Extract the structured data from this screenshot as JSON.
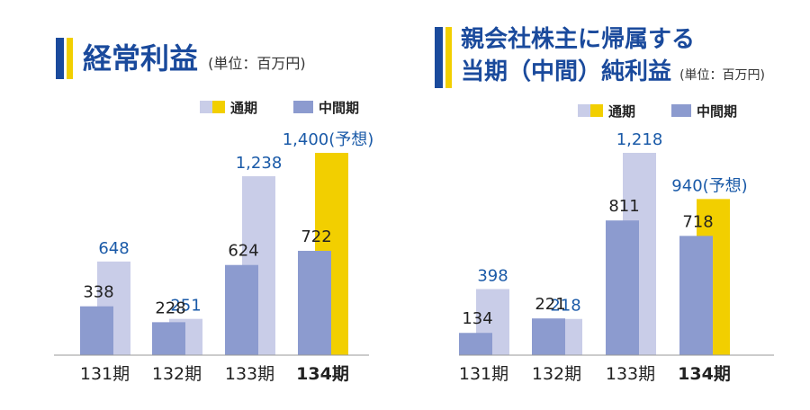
{
  "chart_data": [
    {
      "type": "bar",
      "title": "経常利益",
      "unit": "(単位：百万円)",
      "legend": {
        "placement": "top-right",
        "items": [
          "通期",
          "中間期"
        ]
      },
      "categories": [
        "131期",
        "132期",
        "133期",
        "134期"
      ],
      "series": [
        {
          "name": "中間期",
          "values": [
            338,
            228,
            624,
            722
          ]
        },
        {
          "name": "通期",
          "values": [
            648,
            251,
            1238,
            1400
          ]
        }
      ],
      "value_labels": {
        "中間期": [
          "338",
          "228",
          "624",
          "722"
        ],
        "通期": [
          "648",
          "251",
          "1,238",
          "1,400(予想)"
        ]
      },
      "highlight": {
        "category": "134期",
        "series": "通期",
        "label": "1,400(予想)"
      },
      "ylim": [
        0,
        1400
      ]
    },
    {
      "type": "bar",
      "title": "親会社株主に帰属する当期（中間）純利益",
      "title_lines": [
        "親会社株主に帰属する",
        "当期（中間）純利益"
      ],
      "unit": "(単位：百万円)",
      "legend": {
        "placement": "top-right",
        "items": [
          "通期",
          "中間期"
        ]
      },
      "categories": [
        "131期",
        "132期",
        "133期",
        "134期"
      ],
      "series": [
        {
          "name": "中間期",
          "values": [
            134,
            221,
            811,
            718
          ]
        },
        {
          "name": "通期",
          "values": [
            398,
            218,
            1218,
            940
          ]
        }
      ],
      "value_labels": {
        "中間期": [
          "134",
          "221",
          "811",
          "718"
        ],
        "通期": [
          "398",
          "218",
          "1,218",
          "940(予想)"
        ]
      },
      "highlight": {
        "category": "134期",
        "series": "通期",
        "label": "940(予想)"
      },
      "ylim": [
        0,
        1218
      ]
    }
  ],
  "colors": {
    "title": "#1a4a9c",
    "interim": "#8c9bcf",
    "full_year": "#c9cde8",
    "forecast": "#f2cf00",
    "value_label_full": "#1a5aa8",
    "value_label_interim": "#222222",
    "axis": "#9a9a9a",
    "accent_blue": "#1a4a9c",
    "accent_yellow": "#f2cf00"
  }
}
